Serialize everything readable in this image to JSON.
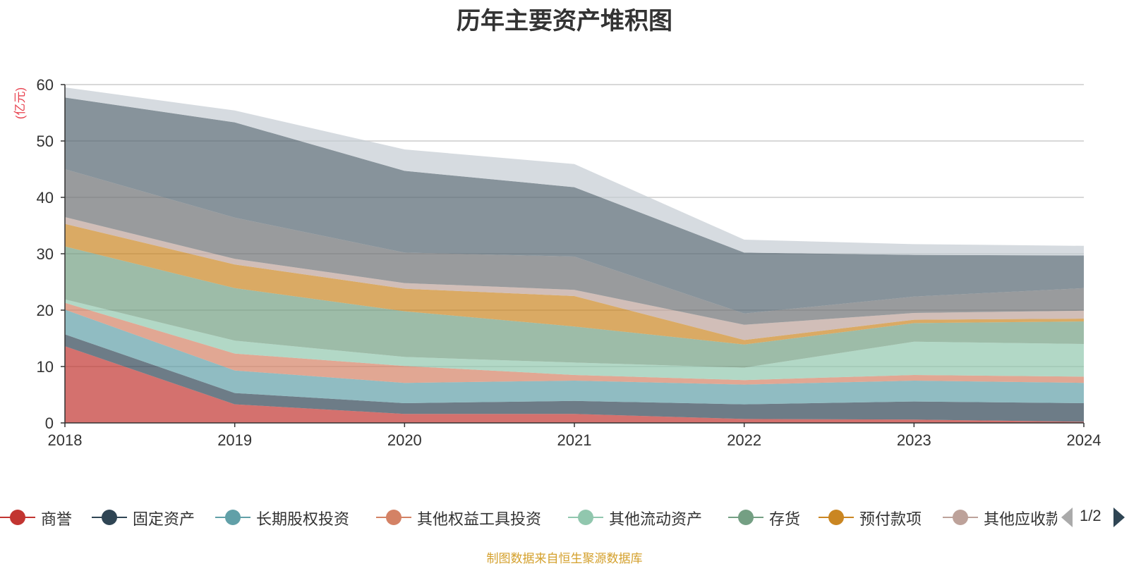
{
  "title": "历年主要资产堆积图",
  "yunit": "(亿元)",
  "source": "制图数据来自恒生聚源数据库",
  "pager": {
    "page": "1/2"
  },
  "legend": [
    {
      "name": "商誉",
      "color": "#c23531"
    },
    {
      "name": "固定资产",
      "color": "#2f4554"
    },
    {
      "name": "长期股权投资",
      "color": "#61a0a8"
    },
    {
      "name": "其他权益工具投资",
      "color": "#d48265"
    },
    {
      "name": "其他流动资产",
      "color": "#91c7ae"
    },
    {
      "name": "存货",
      "color": "#749f83"
    },
    {
      "name": "预付款项",
      "color": "#ca8622"
    },
    {
      "name": "其他应收款",
      "color": "#bda29a"
    }
  ],
  "chart_data": {
    "type": "area",
    "stacked": true,
    "title": "历年主要资产堆积图",
    "ylabel": "(亿元)",
    "x": [
      "2018",
      "2019",
      "2020",
      "2021",
      "2022",
      "2023",
      "2024"
    ],
    "ylim": [
      0,
      60
    ],
    "yticks": [
      0,
      10,
      20,
      30,
      40,
      50,
      60
    ],
    "grid": true,
    "legend_position": "bottom",
    "series": [
      {
        "name": "商誉",
        "color": "#c23531",
        "values": [
          13.6,
          3.3,
          1.6,
          1.6,
          0.7,
          0.6,
          0.2
        ]
      },
      {
        "name": "固定资产",
        "color": "#2f4554",
        "values": [
          2.1,
          2.0,
          1.9,
          2.3,
          2.6,
          3.2,
          3.3
        ]
      },
      {
        "name": "长期股权投资",
        "color": "#61a0a8",
        "values": [
          4.4,
          4.0,
          3.6,
          3.6,
          3.5,
          3.7,
          3.6
        ]
      },
      {
        "name": "其他权益工具投资",
        "color": "#d48265",
        "values": [
          1.2,
          3.0,
          3.0,
          1.0,
          0.8,
          1.0,
          1.1
        ]
      },
      {
        "name": "其他流动资产",
        "color": "#91c7ae",
        "values": [
          0.6,
          2.3,
          1.6,
          2.2,
          2.2,
          5.9,
          5.8
        ]
      },
      {
        "name": "存货",
        "color": "#749f83",
        "values": [
          9.4,
          9.3,
          8.1,
          6.4,
          4.1,
          3.3,
          4.0
        ]
      },
      {
        "name": "预付款项",
        "color": "#ca8622",
        "values": [
          4.0,
          4.2,
          4.0,
          5.4,
          0.8,
          0.6,
          0.5
        ]
      },
      {
        "name": "其他应收款",
        "color": "#bda29a",
        "values": [
          1.2,
          1.0,
          1.0,
          1.1,
          2.7,
          1.2,
          1.4
        ]
      },
      {
        "name": "",
        "color": "#6e7074",
        "values": [
          8.5,
          7.3,
          5.4,
          5.9,
          2.0,
          2.9,
          4.0
        ]
      },
      {
        "name": "",
        "color": "#546570",
        "values": [
          12.7,
          16.9,
          14.5,
          12.3,
          10.8,
          7.4,
          5.8
        ]
      },
      {
        "name": "",
        "color": "#c4ccd3",
        "values": [
          1.8,
          2.1,
          3.8,
          4.1,
          2.3,
          1.9,
          1.7
        ]
      }
    ]
  }
}
